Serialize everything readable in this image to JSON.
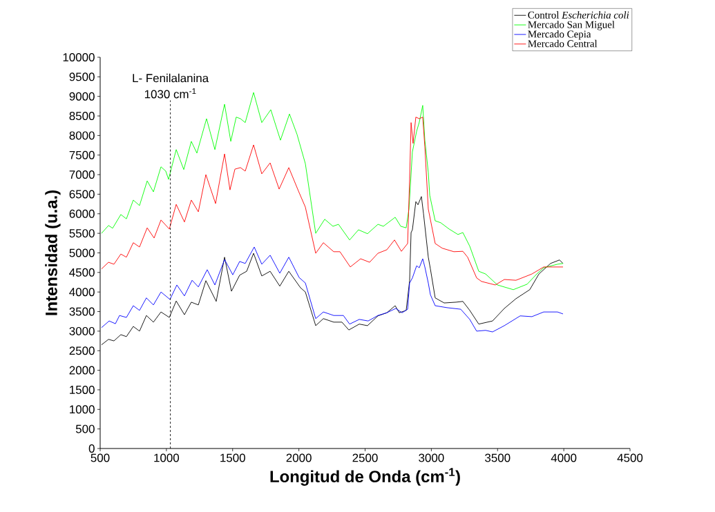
{
  "chart_data": {
    "type": "line",
    "xlabel": "Longitud de Onda (cm$^{-1}$)",
    "ylabel": "Intensidad (u.a.)",
    "xlim": [
      500,
      4500
    ],
    "ylim": [
      0,
      10000
    ],
    "xticks": [
      500,
      1000,
      1500,
      2000,
      2500,
      3000,
      3500,
      4000,
      4500
    ],
    "yticks": [
      0,
      500,
      1000,
      1500,
      2000,
      2500,
      3000,
      3500,
      4000,
      4500,
      5000,
      5500,
      6000,
      6500,
      7000,
      7500,
      8000,
      8500,
      9000,
      9500,
      10000
    ],
    "legend": "top right",
    "ref_lines": [
      {
        "axis": "x",
        "value": 1030,
        "label": "1030 cm$^{-1}$",
        "color": "#000000",
        "line_style": "dashed"
      }
    ],
    "annotations": [
      "L- Fenilalanina"
    ],
    "series": [
      {
        "name": "Control *Escherichia coli*",
        "color": "#000000",
        "x": [
          510,
          563,
          604,
          656,
          698,
          750,
          797,
          849,
          902,
          959,
          1022,
          1074,
          1136,
          1188,
          1241,
          1298,
          1376,
          1439,
          1491,
          1553,
          1606,
          1658,
          1720,
          1783,
          1856,
          1924,
          2012,
          2049,
          2127,
          2185,
          2263,
          2325,
          2377,
          2456,
          2518,
          2597,
          2664,
          2727,
          2758,
          2810,
          2836,
          2847,
          2857,
          2883,
          2899,
          2925,
          2941,
          2977,
          2993,
          3029,
          3097,
          3186,
          3238,
          3290,
          3358,
          3462,
          3551,
          3639,
          3743,
          3812,
          3900,
          3968,
          3994
        ],
        "values": [
          2650,
          2790,
          2750,
          2910,
          2860,
          3120,
          3000,
          3400,
          3230,
          3490,
          3350,
          3770,
          3420,
          3740,
          3670,
          4290,
          3760,
          4890,
          4020,
          4430,
          4530,
          4990,
          4410,
          4530,
          4150,
          4530,
          4110,
          4000,
          3140,
          3320,
          3230,
          3230,
          3030,
          3180,
          3140,
          3390,
          3470,
          3650,
          3470,
          3530,
          4290,
          5520,
          5590,
          6310,
          6230,
          6440,
          6000,
          4890,
          4590,
          3850,
          3720,
          3740,
          3760,
          3530,
          3180,
          3260,
          3580,
          3830,
          4060,
          4460,
          4730,
          4820,
          4730
        ]
      },
      {
        "name": "Mercado San Miguel",
        "color": "#00ff00",
        "x": [
          510,
          563,
          594,
          656,
          698,
          750,
          797,
          855,
          902,
          959,
          995,
          1016,
          1074,
          1131,
          1188,
          1230,
          1303,
          1366,
          1439,
          1486,
          1527,
          1559,
          1595,
          1658,
          1720,
          1788,
          1861,
          1929,
          1986,
          2049,
          2127,
          2195,
          2257,
          2299,
          2383,
          2450,
          2518,
          2597,
          2638,
          2727,
          2769,
          2810,
          2831,
          2857,
          2889,
          2909,
          2935,
          2951,
          2977,
          2988,
          3029,
          3071,
          3134,
          3201,
          3238,
          3290,
          3358,
          3410,
          3499,
          3619,
          3723,
          3796,
          3848,
          3952,
          3994
        ],
        "values": [
          5500,
          5700,
          5630,
          5980,
          5870,
          6350,
          6210,
          6840,
          6560,
          7200,
          7090,
          6880,
          7640,
          7130,
          7850,
          7550,
          8430,
          7640,
          8800,
          7850,
          8470,
          8430,
          8330,
          9100,
          8330,
          8660,
          7880,
          8550,
          8030,
          7280,
          5500,
          5860,
          5680,
          5730,
          5330,
          5590,
          5490,
          5730,
          5680,
          5910,
          5680,
          5640,
          6120,
          7580,
          8110,
          8340,
          8770,
          7880,
          7060,
          6470,
          5820,
          5770,
          5610,
          5470,
          5520,
          5170,
          4530,
          4460,
          4180,
          4060,
          4200,
          4460,
          4620,
          4710,
          4730
        ]
      },
      {
        "name": "Mercado Cepia",
        "color": "#0000ff",
        "x": [
          510,
          568,
          615,
          646,
          698,
          750,
          797,
          849,
          902,
          959,
          1027,
          1079,
          1136,
          1194,
          1241,
          1308,
          1366,
          1439,
          1501,
          1553,
          1595,
          1663,
          1720,
          1783,
          1856,
          1924,
          2002,
          2049,
          2127,
          2185,
          2263,
          2336,
          2383,
          2456,
          2523,
          2597,
          2664,
          2732,
          2779,
          2821,
          2836,
          2857,
          2889,
          2909,
          2935,
          2951,
          2977,
          2993,
          3029,
          3118,
          3222,
          3290,
          3342,
          3410,
          3462,
          3551,
          3671,
          3759,
          3848,
          3952,
          3994
        ],
        "values": [
          3090,
          3260,
          3190,
          3400,
          3350,
          3650,
          3530,
          3850,
          3670,
          4000,
          3810,
          4180,
          3900,
          4300,
          4130,
          4570,
          4180,
          4830,
          4440,
          4780,
          4730,
          5150,
          4710,
          4940,
          4480,
          4890,
          4370,
          4230,
          3320,
          3490,
          3400,
          3400,
          3180,
          3300,
          3260,
          3400,
          3470,
          3580,
          3470,
          3560,
          4230,
          4360,
          4670,
          4620,
          4850,
          4640,
          4230,
          3930,
          3650,
          3600,
          3560,
          3300,
          3000,
          3020,
          2980,
          3140,
          3390,
          3370,
          3490,
          3490,
          3440
        ]
      },
      {
        "name": "Mercado Central",
        "color": "#ff0000",
        "x": [
          510,
          563,
          604,
          656,
          698,
          750,
          797,
          855,
          907,
          959,
          1022,
          1074,
          1136,
          1188,
          1241,
          1298,
          1371,
          1439,
          1480,
          1517,
          1559,
          1595,
          1658,
          1720,
          1783,
          1851,
          1924,
          1997,
          2049,
          2127,
          2185,
          2263,
          2310,
          2388,
          2466,
          2534,
          2597,
          2664,
          2722,
          2774,
          2821,
          2836,
          2847,
          2862,
          2883,
          2909,
          2935,
          2951,
          2977,
          3029,
          3082,
          3170,
          3238,
          3274,
          3342,
          3379,
          3483,
          3551,
          3639,
          3759,
          3848,
          3932,
          3994
        ],
        "values": [
          4590,
          4760,
          4710,
          4970,
          4890,
          5260,
          5150,
          5640,
          5380,
          5840,
          5610,
          6240,
          5790,
          6350,
          6050,
          7000,
          6260,
          7530,
          6610,
          7140,
          7180,
          7090,
          7760,
          7020,
          7300,
          6630,
          7180,
          6580,
          6170,
          4990,
          5260,
          5030,
          5030,
          4640,
          4850,
          4760,
          4990,
          5080,
          5330,
          5040,
          5240,
          6880,
          8330,
          7800,
          8470,
          8430,
          8470,
          7710,
          6120,
          5240,
          5120,
          5030,
          5040,
          4890,
          4360,
          4270,
          4180,
          4320,
          4300,
          4460,
          4640,
          4640,
          4640
        ]
      }
    ]
  }
}
